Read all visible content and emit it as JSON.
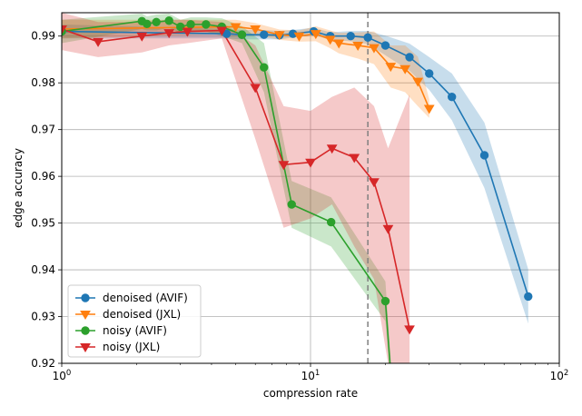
{
  "chart_data": {
    "type": "line",
    "title": "",
    "xlabel": "compression rate",
    "ylabel": "edge accuracy",
    "x_scale": "log",
    "xlim": [
      1,
      100
    ],
    "ylim": [
      0.92,
      0.995
    ],
    "x_ticks": [
      {
        "value": 1,
        "base": "10",
        "exp": "0"
      },
      {
        "value": 10,
        "base": "10",
        "exp": "1"
      },
      {
        "value": 100,
        "base": "10",
        "exp": "2"
      }
    ],
    "y_ticks": [
      {
        "value": 0.92,
        "label": "0.92"
      },
      {
        "value": 0.93,
        "label": "0.93"
      },
      {
        "value": 0.94,
        "label": "0.94"
      },
      {
        "value": 0.95,
        "label": "0.95"
      },
      {
        "value": 0.96,
        "label": "0.96"
      },
      {
        "value": 0.97,
        "label": "0.97"
      },
      {
        "value": 0.98,
        "label": "0.98"
      },
      {
        "value": 0.99,
        "label": "0.99"
      }
    ],
    "grid": true,
    "legend_position": "lower-left",
    "reference_line": {
      "x": 17,
      "style": "dashed",
      "color": "#808080"
    },
    "series": [
      {
        "name": "denoised (AVIF)",
        "color": "#1f77b4",
        "marker": "circle",
        "x": [
          1.0,
          4.6,
          5.3,
          6.5,
          7.5,
          8.5,
          10.3,
          12.0,
          14.5,
          17.0,
          20.0,
          25.0,
          30.0,
          37.0,
          50.0,
          75.0
        ],
        "y": [
          0.991,
          0.9905,
          0.9903,
          0.9903,
          0.9902,
          0.9905,
          0.991,
          0.99,
          0.99,
          0.9897,
          0.988,
          0.9855,
          0.982,
          0.977,
          0.9645,
          0.9343
        ],
        "y_low": [
          0.9895,
          0.9895,
          0.9893,
          0.9893,
          0.9893,
          0.9897,
          0.9902,
          0.9892,
          0.9889,
          0.9883,
          0.9859,
          0.9826,
          0.9785,
          0.972,
          0.9575,
          0.9285
        ],
        "y_high": [
          0.9925,
          0.9915,
          0.9913,
          0.9913,
          0.9911,
          0.9913,
          0.9918,
          0.9908,
          0.9911,
          0.9911,
          0.9901,
          0.9884,
          0.9855,
          0.982,
          0.9715,
          0.9401
        ]
      },
      {
        "name": "denoised (JXL)",
        "color": "#ff7f0e",
        "marker": "triangle-down",
        "x": [
          1.0,
          5.0,
          6.0,
          7.5,
          9.0,
          10.5,
          12.0,
          13.0,
          15.5,
          18.0,
          21.0,
          24.0,
          27.0,
          30.0
        ],
        "y": [
          0.9915,
          0.992,
          0.9915,
          0.9903,
          0.99,
          0.9905,
          0.9893,
          0.9885,
          0.988,
          0.9875,
          0.9835,
          0.983,
          0.9803,
          0.9745
        ],
        "y_low": [
          0.9895,
          0.9905,
          0.9902,
          0.9892,
          0.9888,
          0.9889,
          0.9874,
          0.9863,
          0.9852,
          0.984,
          0.979,
          0.978,
          0.975,
          0.9725
        ],
        "y_high": [
          0.9935,
          0.9935,
          0.9928,
          0.9914,
          0.9912,
          0.9921,
          0.9912,
          0.9907,
          0.9908,
          0.991,
          0.988,
          0.988,
          0.9856,
          0.9765
        ]
      },
      {
        "name": "noisy (AVIF)",
        "color": "#2ca02c",
        "marker": "circle",
        "x": [
          1.0,
          2.1,
          2.2,
          2.4,
          2.7,
          3.0,
          3.3,
          3.8,
          4.4,
          5.3,
          6.5,
          8.4,
          12.1,
          20.0,
          21.0
        ],
        "y": [
          0.991,
          0.9932,
          0.9926,
          0.993,
          0.9933,
          0.992,
          0.9925,
          0.9925,
          0.992,
          0.9903,
          0.9833,
          0.954,
          0.9502,
          0.9333,
          0.918
        ],
        "y_low": [
          0.9885,
          0.9915,
          0.9912,
          0.9912,
          0.9918,
          0.9905,
          0.991,
          0.991,
          0.99,
          0.9885,
          0.978,
          0.949,
          0.945,
          0.929,
          0.915
        ],
        "y_high": [
          0.9935,
          0.9948,
          0.9942,
          0.9946,
          0.9948,
          0.9935,
          0.994,
          0.994,
          0.9938,
          0.9921,
          0.9885,
          0.959,
          0.9555,
          0.9375,
          0.921
        ]
      },
      {
        "name": "noisy (JXL)",
        "color": "#d62728",
        "marker": "triangle-down",
        "x": [
          1.0,
          1.4,
          2.1,
          2.7,
          3.2,
          4.4,
          6.0,
          7.8,
          10.0,
          12.2,
          15.0,
          18.0,
          20.5,
          25.0
        ],
        "y": [
          0.9915,
          0.9888,
          0.99,
          0.9907,
          0.991,
          0.9912,
          0.979,
          0.9625,
          0.963,
          0.966,
          0.964,
          0.9588,
          0.9488,
          0.9273
        ],
        "y_low": [
          0.987,
          0.9855,
          0.9865,
          0.988,
          0.9885,
          0.9895,
          0.968,
          0.949,
          0.951,
          0.954,
          0.945,
          0.938,
          0.92,
          0.92
        ],
        "y_high": [
          0.995,
          0.993,
          0.993,
          0.9935,
          0.9935,
          0.993,
          0.988,
          0.975,
          0.974,
          0.977,
          0.979,
          0.975,
          0.966,
          0.9775
        ]
      }
    ]
  }
}
